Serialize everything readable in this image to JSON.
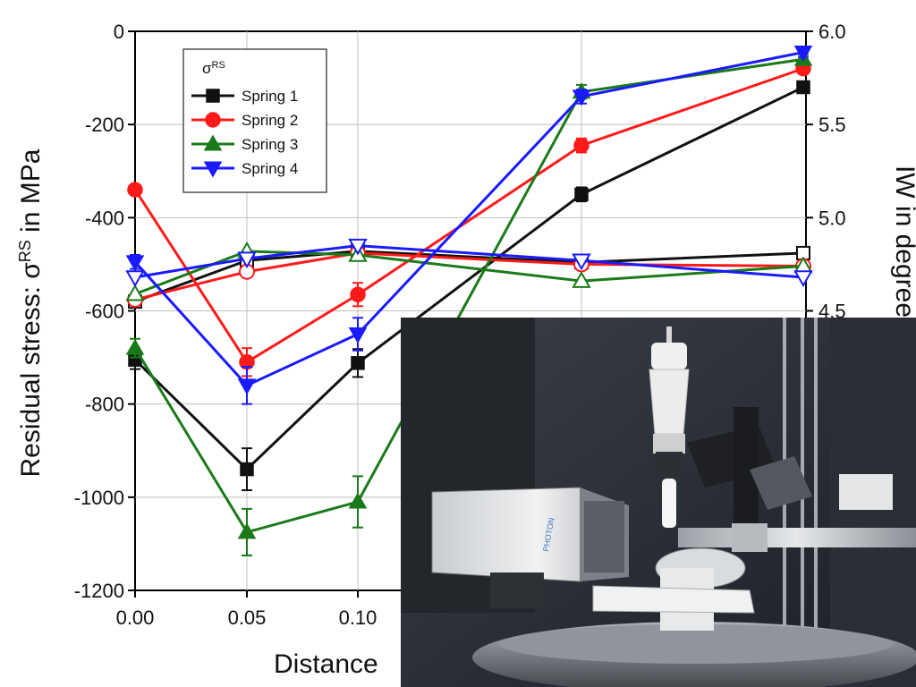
{
  "chart_data": {
    "type": "line",
    "xlabel": "Distance",
    "ylabel_left": "Residual stress: σ",
    "ylabel_left_sup": "RS",
    "ylabel_left_suffix": " in MPa",
    "ylabel_right": "IW in degree",
    "legend_title": "σ",
    "legend_title_sup": "RS",
    "legend_placement": "top-left",
    "grid": true,
    "x": [
      0.0,
      0.05,
      0.1,
      0.2,
      0.3
    ],
    "x_tick_labels": [
      "0.00",
      "0.05",
      "0.10"
    ],
    "ylim_left": [
      -1200,
      0
    ],
    "y_ticks_left": [
      0,
      -200,
      -400,
      -600,
      -800,
      -1000,
      -1200
    ],
    "ylim_right": [
      3.0,
      6.0
    ],
    "y_ticks_right": [
      "6.0",
      "5.5",
      "5.0",
      "4.5"
    ],
    "series": [
      {
        "name": "Spring 1",
        "color": "#111111",
        "marker": "square",
        "stress": [
          -705,
          -940,
          -712,
          -350,
          -120
        ],
        "stress_err": [
          20,
          45,
          30,
          15,
          10
        ],
        "iw": [
          4.55,
          4.77,
          4.82,
          4.76,
          4.81
        ]
      },
      {
        "name": "Spring 2",
        "color": "#ff1a1a",
        "marker": "circle",
        "stress": [
          -340,
          -710,
          -565,
          -245,
          -80
        ],
        "stress_err": [
          10,
          30,
          25,
          15,
          10
        ],
        "iw": [
          4.56,
          4.71,
          4.81,
          4.75,
          4.74
        ]
      },
      {
        "name": "Spring 3",
        "color": "#1a7a1a",
        "marker": "triangle-up",
        "stress": [
          -680,
          -1075,
          -1010,
          -130,
          -60
        ],
        "stress_err": [
          20,
          50,
          55,
          15,
          10
        ],
        "iw": [
          4.59,
          4.82,
          4.8,
          4.66,
          4.74
        ]
      },
      {
        "name": "Spring 4",
        "color": "#1a1aff",
        "marker": "triangle-down",
        "stress": [
          -495,
          -760,
          -650,
          -140,
          -45
        ],
        "stress_err": [
          15,
          40,
          35,
          15,
          10
        ],
        "iw": [
          4.68,
          4.78,
          4.85,
          4.77,
          4.68
        ]
      }
    ]
  },
  "photo": {
    "detector_label": "PHOTON"
  }
}
